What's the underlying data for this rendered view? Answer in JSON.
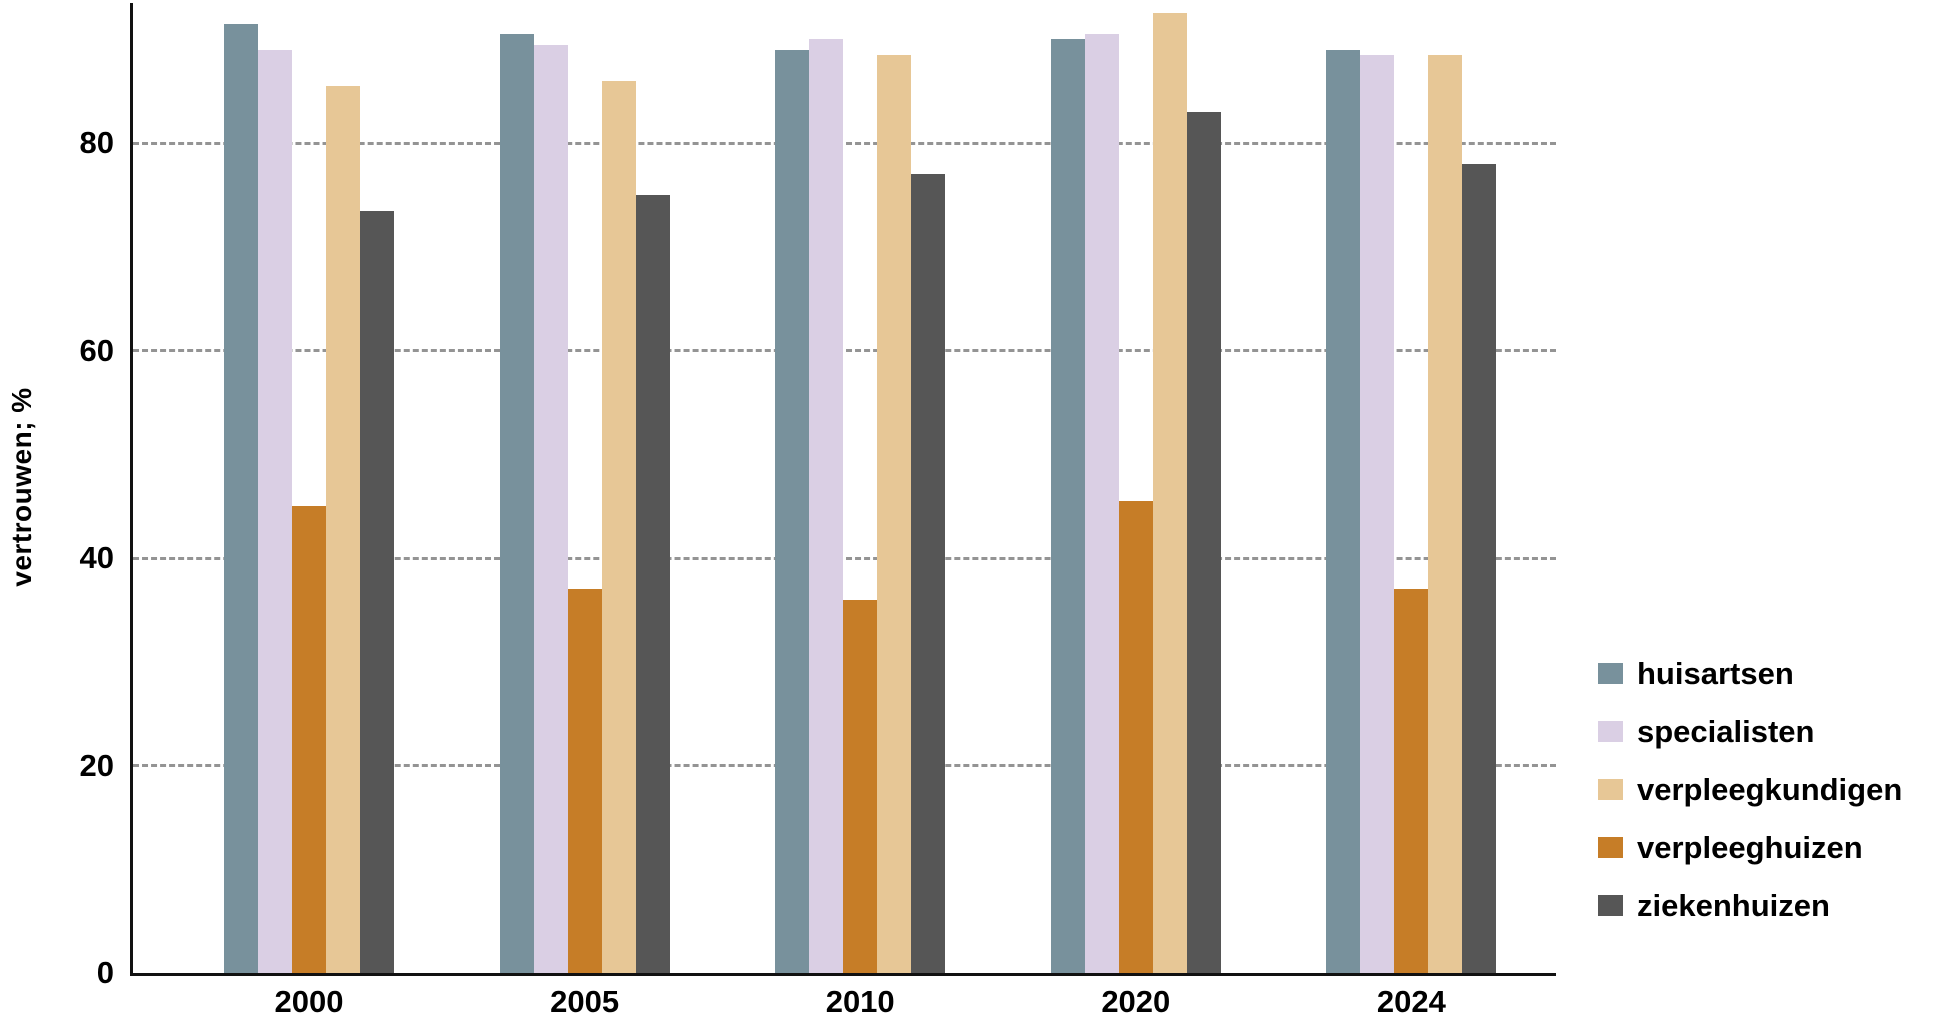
{
  "chart_data": {
    "type": "bar",
    "title": "",
    "ylabel": "vertrouwen; %",
    "xlabel": "",
    "categories": [
      "2000",
      "2005",
      "2010",
      "2020",
      "2024"
    ],
    "series": [
      {
        "name": "huisartsen",
        "color": "#78919C",
        "values": [
          91.5,
          90.5,
          89,
          90,
          89
        ]
      },
      {
        "name": "specialisten",
        "color": "#DACFE4",
        "values": [
          89,
          89.5,
          90,
          90.5,
          88.5
        ]
      },
      {
        "name": "verpleegkundigen",
        "color": "#E7C796",
        "values": [
          85.5,
          86,
          88.5,
          92.5,
          88.5
        ]
      },
      {
        "name": "verpleeghuizen",
        "color": "#C67D27",
        "values": [
          45,
          37,
          36,
          45.5,
          37
        ]
      },
      {
        "name": "ziekenhuizen",
        "color": "#565656",
        "values": [
          73.5,
          75,
          77,
          83,
          78
        ]
      }
    ],
    "bar_order": [
      "huisartsen",
      "specialisten",
      "verpleeghuizen",
      "verpleegkundigen",
      "ziekenhuizen"
    ],
    "y_ticks": [
      0,
      20,
      40,
      60,
      80
    ],
    "ylim": [
      0,
      93.5
    ],
    "grid": "horizontal-dashed",
    "legend_position": "right",
    "colors": {
      "axis": "#111111",
      "gridline": "#949494",
      "text": "#000000",
      "background": "#FFFFFF"
    }
  }
}
